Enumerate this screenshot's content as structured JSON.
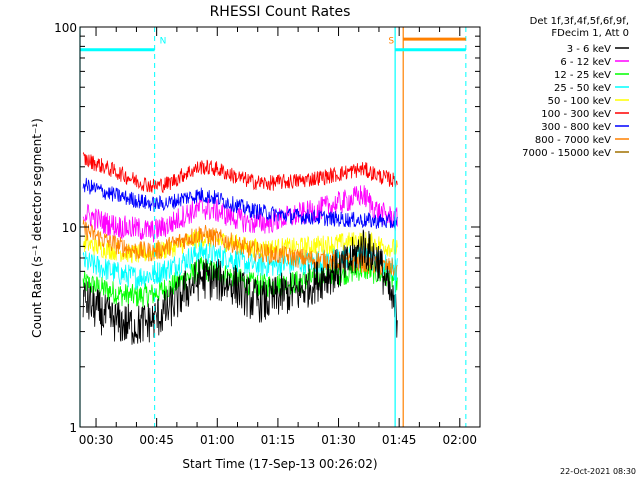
{
  "chart_data": {
    "type": "line",
    "title": "RHESSI Count Rates",
    "xlabel": "Start Time (17-Sep-13 00:26:02)",
    "ylabel": "Count Rate (s⁻¹ detector segment⁻¹)",
    "x_range": [
      "00:26:02",
      "02:05"
    ],
    "x_ticks": [
      "00:30",
      "00:45",
      "01:00",
      "01:15",
      "01:30",
      "01:45",
      "02:00"
    ],
    "y_scale": "log",
    "ylim": [
      1,
      100
    ],
    "y_ticks": [
      1,
      10,
      100
    ],
    "y_tick_labels": [
      "1",
      "10",
      "100"
    ],
    "grid": false,
    "legend_position": "right",
    "legend_header": [
      "Det 1f,3f,4f,5f,6f,9f,",
      "FDecim 1, Att 0"
    ],
    "series": [
      {
        "name": "3 - 6 keV",
        "color": "#000000",
        "x": [
          "00:28",
          "00:32",
          "00:36",
          "00:40",
          "00:44",
          "00:48",
          "00:52",
          "00:56",
          "01:00",
          "01:04",
          "01:08",
          "01:12",
          "01:16",
          "01:20",
          "01:24",
          "01:28",
          "01:32",
          "01:36",
          "01:40",
          "01:44"
        ],
        "values": [
          4.2,
          3.6,
          3.3,
          3.2,
          3.4,
          3.9,
          4.8,
          5.6,
          5.4,
          5.2,
          4.4,
          4.2,
          4.6,
          4.7,
          5.3,
          5.9,
          6.4,
          8.0,
          6.8,
          3.8
        ]
      },
      {
        "name": "6 - 12 keV",
        "color": "#ff00ff",
        "x": [
          "00:28",
          "00:32",
          "00:36",
          "00:40",
          "00:44",
          "00:48",
          "00:52",
          "00:56",
          "01:00",
          "01:04",
          "01:08",
          "01:12",
          "01:16",
          "01:20",
          "01:24",
          "01:28",
          "01:32",
          "01:36",
          "01:40",
          "01:44"
        ],
        "values": [
          11.5,
          10.5,
          10.0,
          9.8,
          9.5,
          10.2,
          11.5,
          12.5,
          12.0,
          11.2,
          10.5,
          10.5,
          11.0,
          11.5,
          12.0,
          12.8,
          13.5,
          14.5,
          11.8,
          11.0
        ]
      },
      {
        "name": "12 - 25 keV",
        "color": "#00ff00",
        "x": [
          "00:28",
          "00:32",
          "00:36",
          "00:40",
          "00:44",
          "00:48",
          "00:52",
          "00:56",
          "01:00",
          "01:04",
          "01:08",
          "01:12",
          "01:16",
          "01:20",
          "01:24",
          "01:28",
          "01:32",
          "01:36",
          "01:40",
          "01:44"
        ],
        "values": [
          5.2,
          4.9,
          4.6,
          4.5,
          4.6,
          5.0,
          5.5,
          6.2,
          5.9,
          5.6,
          5.2,
          5.1,
          5.2,
          5.3,
          5.5,
          5.8,
          5.9,
          6.2,
          5.8,
          5.4
        ]
      },
      {
        "name": "25 - 50 keV",
        "color": "#00ffff",
        "x": [
          "00:28",
          "00:32",
          "00:36",
          "00:40",
          "00:44",
          "00:48",
          "00:52",
          "00:56",
          "01:00",
          "01:04",
          "01:08",
          "01:12",
          "01:16",
          "01:20",
          "01:24",
          "01:28",
          "01:32",
          "01:36",
          "01:40",
          "01:44"
        ],
        "values": [
          6.6,
          6.2,
          5.8,
          5.6,
          5.8,
          6.2,
          6.8,
          7.6,
          7.2,
          6.9,
          6.5,
          6.4,
          6.5,
          6.6,
          6.7,
          6.9,
          7.0,
          7.1,
          6.7,
          6.2
        ]
      },
      {
        "name": "50 - 100 keV",
        "color": "#ffff00",
        "x": [
          "00:28",
          "00:32",
          "00:36",
          "00:40",
          "00:44",
          "00:48",
          "00:52",
          "00:56",
          "01:00",
          "01:04",
          "01:08",
          "01:12",
          "01:16",
          "01:20",
          "01:24",
          "01:28",
          "01:32",
          "01:36",
          "01:40",
          "01:44"
        ],
        "values": [
          8.2,
          7.8,
          7.5,
          7.3,
          7.4,
          7.8,
          8.3,
          8.9,
          8.6,
          8.3,
          7.9,
          7.8,
          7.9,
          7.9,
          8.1,
          8.2,
          8.4,
          8.6,
          8.2,
          7.8
        ]
      },
      {
        "name": "100 - 300 keV",
        "color": "#ff0000",
        "x": [
          "00:28",
          "00:32",
          "00:36",
          "00:40",
          "00:44",
          "00:48",
          "00:52",
          "00:56",
          "01:00",
          "01:04",
          "01:08",
          "01:12",
          "01:16",
          "01:20",
          "01:24",
          "01:28",
          "01:32",
          "01:36",
          "01:40",
          "01:44"
        ],
        "values": [
          21.5,
          20.0,
          18.5,
          17.0,
          16.0,
          16.5,
          18.5,
          20.0,
          19.5,
          18.0,
          17.0,
          16.5,
          16.8,
          17.0,
          17.5,
          18.0,
          18.8,
          19.5,
          18.0,
          17.0
        ]
      },
      {
        "name": "300 - 800 keV",
        "color": "#0000ff",
        "x": [
          "00:28",
          "00:32",
          "00:36",
          "00:40",
          "00:44",
          "00:48",
          "00:52",
          "00:56",
          "01:00",
          "01:04",
          "01:08",
          "01:12",
          "01:16",
          "01:20",
          "01:24",
          "01:28",
          "01:32",
          "01:36",
          "01:40",
          "01:44"
        ],
        "values": [
          16.0,
          15.0,
          14.2,
          13.6,
          13.0,
          13.2,
          14.0,
          14.5,
          13.9,
          13.0,
          12.2,
          11.8,
          11.5,
          11.3,
          11.2,
          11.0,
          10.9,
          10.8,
          10.7,
          10.5
        ]
      },
      {
        "name": "800 - 7000 keV",
        "color": "#ff8000",
        "x": [
          "00:28",
          "00:32",
          "00:36",
          "00:40",
          "00:44",
          "00:48",
          "00:52",
          "00:56",
          "01:00",
          "01:04",
          "01:08",
          "01:12",
          "01:16",
          "01:20",
          "01:24",
          "01:28",
          "01:32",
          "01:36",
          "01:40",
          "01:44"
        ],
        "values": [
          9.5,
          8.6,
          8.0,
          7.6,
          7.5,
          8.0,
          8.7,
          9.3,
          8.8,
          8.3,
          7.7,
          7.4,
          7.2,
          7.0,
          6.9,
          6.8,
          6.7,
          6.6,
          6.4,
          6.2
        ]
      },
      {
        "name": "7000 - 15000 keV",
        "color": "#a07000"
      }
    ],
    "attenuator_markers": [
      {
        "label": "N",
        "color": "#00ffff",
        "level": 77,
        "start": "00:26:02",
        "end": "00:44:30",
        "dashed_line_at": "00:44:30"
      },
      {
        "label": "S",
        "color": "#00ffff",
        "level": 77,
        "start": "01:44:00",
        "end": "02:01:30",
        "dashed_line_at": "02:01:30"
      },
      {
        "label": "",
        "color": "#ff8000",
        "level": 87,
        "start": "01:46:00",
        "end": "02:01:30"
      }
    ],
    "vertical_lines": [
      {
        "color": "#00ffff",
        "x": "00:26:02",
        "style": "solid"
      },
      {
        "color": "#00ffff",
        "x": "01:44:00",
        "style": "solid"
      },
      {
        "color": "#ff8000",
        "x": "01:46:00",
        "style": "solid"
      }
    ]
  },
  "timestamp": "22-Oct-2021 08:30"
}
